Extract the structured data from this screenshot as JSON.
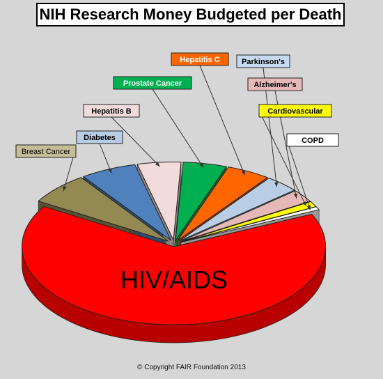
{
  "title": "NIH Research Money Budgeted per Death",
  "footer": "© Copyright FAIR Foundation 2013",
  "chart_data": {
    "type": "pie",
    "style": "3d-exploded-slices",
    "title": "NIH Research Money Budgeted per Death",
    "slices": [
      {
        "label": "HIV/AIDS",
        "value": 72.0,
        "color": "#ff0000",
        "label_on_slice": true
      },
      {
        "label": "Breast Cancer",
        "value": 4.0,
        "color": "#938953"
      },
      {
        "label": "Diabetes",
        "value": 3.6,
        "color": "#4f81bd"
      },
      {
        "label": "Hepatitis  B",
        "value": 2.8,
        "color": "#f2dcdb"
      },
      {
        "label": "Prostate Cancer",
        "value": 2.8,
        "color": "#00b050"
      },
      {
        "label": "Hepatitis C",
        "value": 2.8,
        "color": "#ff6600"
      },
      {
        "label": "Parkinson's",
        "value": 2.2,
        "color": "#b9cde5"
      },
      {
        "label": "Alzheimer's",
        "value": 1.6,
        "color": "#e6b9b8"
      },
      {
        "label": "Cardiovascular",
        "value": 0.7,
        "color": "#ffff00"
      },
      {
        "label": "COPD",
        "value": 0.4,
        "color": "#ffffff"
      }
    ]
  }
}
